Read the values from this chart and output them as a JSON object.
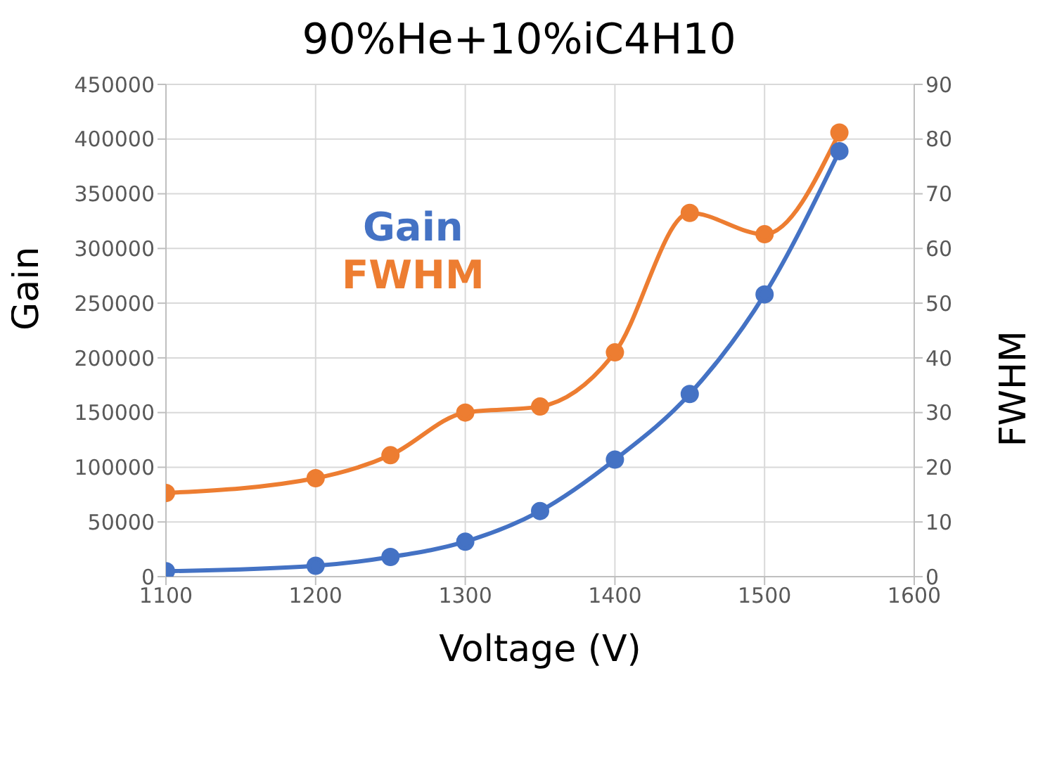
{
  "chart_data": {
    "type": "line",
    "title": "90%He+10%iC4H10",
    "xlabel": "Voltage (V)",
    "ylabel": "Gain",
    "y2label": "FWHM",
    "x": [
      1100,
      1200,
      1250,
      1300,
      1350,
      1400,
      1450,
      1500,
      1550
    ],
    "series": [
      {
        "name": "Gain",
        "color": "#4472c4",
        "values": [
          5000,
          10000,
          18000,
          32000,
          60000,
          107000,
          167000,
          258000,
          389000
        ]
      },
      {
        "name": "FWHM",
        "color": "#ed7d31",
        "axis": "y2",
        "values": [
          15.3,
          18,
          22.2,
          30,
          31.1,
          41,
          66.5,
          62.6,
          81.2
        ]
      }
    ],
    "xlim": [
      1100,
      1600
    ],
    "xticks": [
      1100,
      1200,
      1300,
      1400,
      1500,
      1600
    ],
    "ylim": [
      0,
      450000
    ],
    "yticks": [
      0,
      50000,
      100000,
      150000,
      200000,
      250000,
      300000,
      350000,
      400000,
      450000
    ],
    "y2lim": [
      0,
      90
    ],
    "y2ticks": [
      0,
      10,
      20,
      30,
      40,
      50,
      60,
      70,
      80,
      90
    ],
    "grid": true,
    "legend": "top left",
    "marker": "circle",
    "line_style": "solid"
  }
}
